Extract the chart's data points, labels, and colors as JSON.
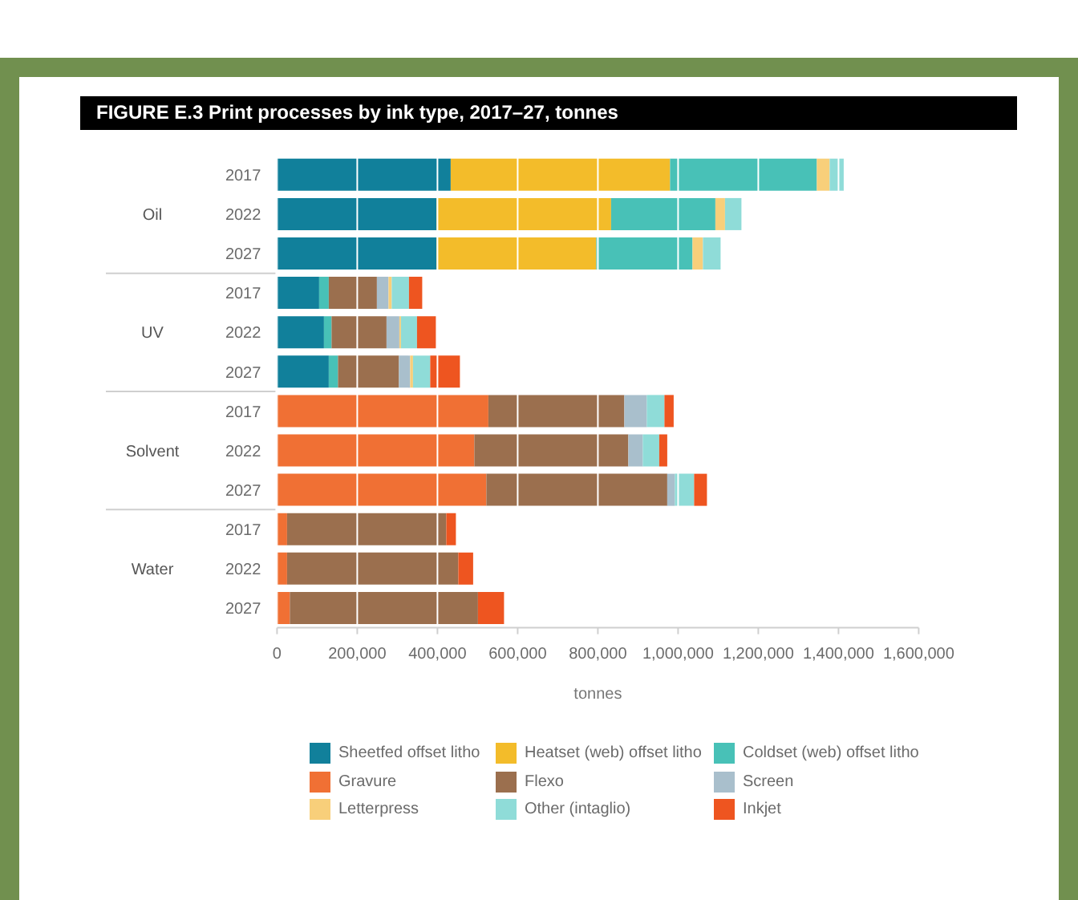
{
  "chart_data": {
    "type": "bar",
    "orientation": "horizontal",
    "stacked": true,
    "title": "FIGURE E.3 Print processes by ink type, 2017–27, tonnes",
    "xlabel": "tonnes",
    "categories": [
      "2017",
      "2022",
      "2027",
      "2017",
      "2022",
      "2027",
      "2017",
      "2022",
      "2027",
      "2017",
      "2022",
      "2027"
    ],
    "annotations": [
      "Oil",
      "UV",
      "Solvent",
      "Water"
    ],
    "xlim": [
      0,
      1600000
    ],
    "xticks": [
      0,
      {
        "value": 200000,
        "label": "200,000"
      },
      {
        "value": 400000,
        "label": "400,000"
      },
      {
        "value": 600000,
        "label": "600,000"
      },
      {
        "value": 800000,
        "label": "800,000"
      },
      {
        "value": 1000000,
        "label": "1,000,000"
      },
      {
        "value": 1200000,
        "label": "1,200,000"
      },
      {
        "value": 1400000,
        "label": "1,400,000"
      },
      {
        "value": 1600000,
        "label": "1,600,000"
      }
    ],
    "grid": "x",
    "legend": "bottom",
    "series": [
      {
        "name": "Sheetfed offset litho",
        "color": "#11809b",
        "values": [
          433000,
          398000,
          398000,
          105000,
          117000,
          129000,
          null,
          null,
          null,
          null,
          null,
          null
        ]
      },
      {
        "name": "Heatset (web) offset litho",
        "color": "#f3bc2a",
        "values": [
          547000,
          435000,
          398000,
          null,
          null,
          null,
          null,
          null,
          null,
          null,
          null,
          null
        ]
      },
      {
        "name": "Coldset (web) offset litho",
        "color": "#48c1b7",
        "values": [
          366000,
          260000,
          240000,
          24000,
          19000,
          23000,
          null,
          null,
          null,
          null,
          null,
          null
        ]
      },
      {
        "name": "Gravure",
        "color": "#f07034",
        "values": [
          null,
          null,
          null,
          null,
          null,
          null,
          527000,
          492000,
          522000,
          25000,
          25000,
          32000
        ]
      },
      {
        "name": "Flexo",
        "color": "#9b6f4e",
        "values": [
          null,
          null,
          null,
          120000,
          137000,
          152000,
          339000,
          384000,
          451000,
          397000,
          427000,
          469000
        ]
      },
      {
        "name": "Screen",
        "color": "#a9bfcc",
        "values": [
          null,
          null,
          null,
          29000,
          32000,
          28000,
          56000,
          36000,
          19000,
          null,
          null,
          null
        ]
      },
      {
        "name": "Letterpress",
        "color": "#f8cf7a",
        "values": [
          32000,
          24000,
          26000,
          8000,
          4000,
          7000,
          null,
          null,
          null,
          null,
          null,
          null
        ]
      },
      {
        "name": "Other (intaglio)",
        "color": "#8fdcd8",
        "values": [
          35000,
          41000,
          44000,
          43000,
          40000,
          43000,
          44000,
          41000,
          48000,
          null,
          null,
          null
        ]
      },
      {
        "name": "Inkjet",
        "color": "#ee5520",
        "values": [
          null,
          null,
          null,
          33000,
          47000,
          74000,
          23000,
          20000,
          32000,
          24000,
          37000,
          65000
        ]
      }
    ]
  }
}
